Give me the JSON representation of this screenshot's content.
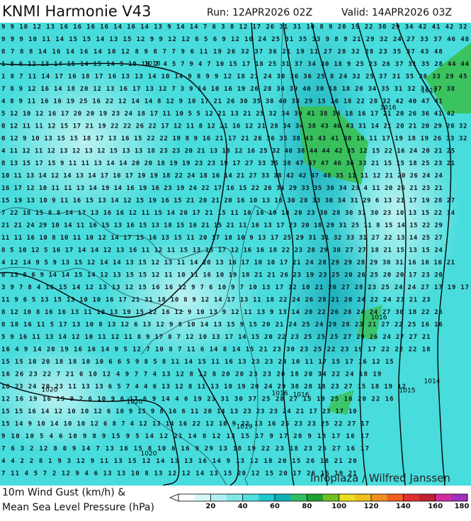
{
  "header": {
    "title": "KNMI Harmonie V43",
    "run": "Run: 12APR2026 02Z",
    "valid": "Valid: 14APR2026 03Z"
  },
  "legend": {
    "line1": "10m Wind Gust (km/h) &",
    "line2": "Mean Sea Level Pressure (hPa)"
  },
  "credit": "Infoplaza / Wilfred Janssen",
  "colorbar": {
    "range": [
      0,
      180
    ],
    "ticks": [
      20,
      40,
      60,
      80,
      100,
      120,
      140,
      160,
      180
    ],
    "colors": [
      "#ffffff",
      "#d8f8f8",
      "#b0f0f0",
      "#80e8e8",
      "#50e0e0",
      "#20c8d0",
      "#10b0b8",
      "#30c060",
      "#20a030",
      "#70c020",
      "#e8e020",
      "#f0c020",
      "#f09020",
      "#f06020",
      "#e03030",
      "#c02030",
      "#d030a0",
      "#a030c0"
    ]
  },
  "isobar_labels": [
    "1018",
    "1017",
    "1016",
    "1016",
    "1015",
    "1014",
    "1016",
    "1020",
    "1020",
    "1020",
    "1019",
    "1016"
  ],
  "grid_rows": [
    "9 9 10 12 13 16 16 16 16 14 16 14 13 9 14 14 7 6 3 8 12 17 26 31 31 10 8 9 20 19 22 30 29 34 42 41 42 32",
    "9 9 9 10 11 14 15 15 14 13 15 12 9 9 12 12 6 5 6 9 12 16 24 25 31 35 33 9 8 9 21 29 32 24 27 33 37 46 48",
    "8 7 8 8 14 16 14 16 14 10 12 8 9 8 7 7 9 6 11 19 26 32 37 36 21 19 11 27 28 32 28 23 35 37 43 48",
    "1 8 6 12 13 14 15 14 15 14 9 10 18 7 4 5 7 9 4 7 10 15 17 18 25 31 37 34 30 18 9 25 23 26 37 31 35 28 44 44",
    "1 8 7 11 14 17 16 18 17 16 13 13 14 10 14 9 8 9 9 12 18 21 24 30 36 36 25 8 24 32 25 37 31 35 38 33 29 45",
    "7 8 9 12 16 14 18 20 12 13 16 17 13 12 7 3 9 14 10 16 19 26 28 34 39 40 30 18 18 20 34 35 31 32 33 37 38",
    "4 8 9 11 16 16 19 25 16 22 12 14 14 8 12 9 10 17 21 26 30 35 38 40 38 29 15 16 18 22 28 32 42 40 47 41",
    "5 12 10 12 16 17 20 20 19 23 24 18 17 11 10 5 5 12 21 13 21 25 32 34 39 41 38 34 18 16 17 21 20 26 36 41 42",
    "0 12 11 11 12 15 17 21 19 22 22 26 22 17 12 11 8 12 21 16 12 21 28 34 34 38 43 40 43 31 14 21 20 21 20 29 26 32",
    "0 12 9 10 13 15 15 18 17 13 16 15 22 22 19 8 9 16 21 17 21 26 36 35 38 43 43 41 38 16 11 17 19 18 19 26 33 32",
    "4 11 12 11 12 13 12 13 12 15 13 13 18 23 23 20 21 13 18 12 16 25 32 40 38 44 44 42 35 12 15 22 16 24 20 21 25",
    "8 13 15 17 15 9 11 11 13 14 14 20 20 18 19 19 23 23 19 17 27 33 35 38 47 47 47 46 36 33 21 15 15 18 25 23 21",
    "10 11 13 14 12 14 13 14 17 16 17 19 19 18 22 24 18 16 14 21 27 33 38 42 42 47 48 35 11 11 12 21 20 26 24 24",
    "16 17 12 10 11 11 13 14 19 14 16 19 16 23 19 24 22 17 16 15 22 26 34 29 33 35 36 34 23 4 11 20 26 21 23 21",
    "15 19 13 10 9 11 16 15 13 14 12 15 19 16 15 21 20 21 20 16 10 13 16 30 28 33 30 34 31 29 6 13 21 17 19 28 27",
    "7 22 18 15 8 8 14 17 13 16 16 12 11 15 14 20 17 21 15 11 10 16 19 18 20 23 30 28 30 31 30 23 10 13 15 22 14",
    "21 21 24 29 10 14 11 16 15 13 16 15 13 18 15 16 21 15 21 11 16 13 17 23 20 18 29 31 25 11 8 15 14 15 22 29",
    "11 11 16 10 8 10 11 10 12 14 17 15 16 13 15 11 20 17 18 10 9 13 17 25 29 31 31 32 33 31 27 22 13 14 25 27",
    "8 5 10 12 5 16 17 14 14 12 13 16 11 12 11 15 13 15 17 12 16 16 18 22 23 28 29 30 27 27 18 21 15 13 15 24",
    "4 12 14 9 5 9 13 15 12 14 14 13 15 12 13 11 14 20 13 16 17 10 10 17 21 24 28 29 29 28 29 30 31 16 10 16 21",
    "8 13 8 6 9 14 14 15 14 12 13 15 15 12 11 10 11 16 10 19 18 21 21 26 23 19 23 25 20 26 25 20 20 17 23 20",
    "3 9 7 8 4 16 15 14 12 13 13 12 15 16 16 12 9 7 6 10 9 7 10 13 17 12 10 21 26 27 28 23 25 24 24 27 17 19 17",
    "11 9 6 5 13 15 13 10 10 16 17 21 31 18 10 8 9 12 14 17 13 11 18 22 24 26 28 21 28 24 22 24 23 21 23",
    "8 12 10 8 16 16 13 11 10 13 19 15 12 16 12 9 10 13 9 12 11 13 9 13 14 20 22 26 28 24 24 27 30 18 22 25",
    "8 18 16 11 5 17 13 10 8 13 12 6 13 12 9 8 10 14 13 15 9 15 20 21 24 25 24 29 28 23 21 27 22 25 16 16",
    "5 9 16 11 13 14 12 10 11 12 11 8 9 17 8 7 12 10 13 17 14 15 20 22 23 25 25 25 27 29 26 24 27 27 21",
    "16 4 9 14 20 19 16 16 14 9 5 12 7 10 8 7 11 6 14 8 14 15 21 23 30 23 25 22 23 19 17 22 22 22 18",
    "15 15 10 20 18 18 10 10 6 6 5 9 8 5 8 11 14 15 11 16 13 23 23 24 10 11 17 15 17 16 12 15",
    "16 26 23 22 7 21 6 10 12 4 9 7 7 4 13 12 8 12 8 20 20 23 23 20 18 20 34 22 24 18 19",
    "18 23 24 20 23 11 13 13 6 5 7 4 4 6 13 12 8 11 13 10 19 20 24 29 38 28 18 23 27 15 18 19 12",
    "12 16 19 16 19 9 2 6 10 9 6 17 6 9 14 4 6 19 23 31 30 37 25 28 27 15 19 25 16 20 22 16",
    "15 15 16 14 12 10 10 12 6 10 9 15 9 8 16 6 11 20 14 13 23 23 23 24 21 17 23 17 10",
    "15 14 9 10 14 10 10 12 6 8 7 4 12 13 14 16 22 12 10 9 22 13 16 25 23 23 25 22 27 17",
    "9 10 10 5 4 6 10 9 8 9 15 9 5 14 12 21 14 8 12 13 15 17 9 17 28 9 18 17 16 17",
    "7 6 3 2 12 8 0 9 14 7 13 16 15 8 10 6 16 9 29 13 18 19 22 23 18 23 26 27 16 17",
    "4 4 2 2 8 1 9 3 12 9 11 13 15 12 14 13 13 16 14 9 13 12 18 20 15 26 18 21 20",
    "7 11 4 5 7 2 12 9 4 6 13 13 10 8 13 12 12 14 13 15 20 12 15 20 17 26 16 19 21"
  ]
}
